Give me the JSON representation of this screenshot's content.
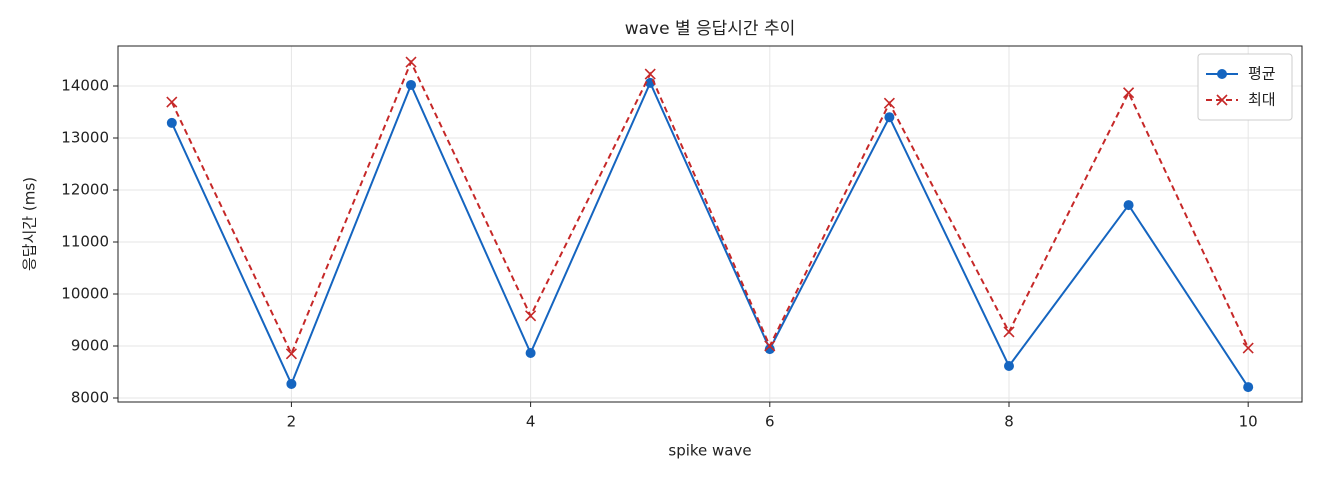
{
  "chart_data": {
    "type": "line",
    "title": "wave 별 응답시간 추이",
    "x_label": "spike wave",
    "y_label": "응답시간 (ms)",
    "x": [
      1,
      2,
      3,
      4,
      5,
      6,
      7,
      8,
      9,
      10
    ],
    "series": [
      {
        "name": "평균",
        "color": "#1565c0",
        "linestyle": "solid",
        "marker": "circle",
        "values": [
          13290,
          8270,
          14020,
          8865,
          14060,
          8940,
          13400,
          8615,
          11710,
          8210
        ]
      },
      {
        "name": "최대",
        "color": "#c62828",
        "linestyle": "dashed",
        "marker": "x",
        "values": [
          13690,
          8850,
          14460,
          9580,
          14230,
          9000,
          13670,
          9270,
          13870,
          8960
        ]
      }
    ],
    "xlim": [
      0.55,
      10.45
    ],
    "ylim": [
      7923,
      14769
    ],
    "xticks": [
      2,
      4,
      6,
      8,
      10
    ],
    "yticks": [
      8000,
      9000,
      10000,
      11000,
      12000,
      13000,
      14000
    ],
    "grid": true,
    "legend": "upper right"
  }
}
